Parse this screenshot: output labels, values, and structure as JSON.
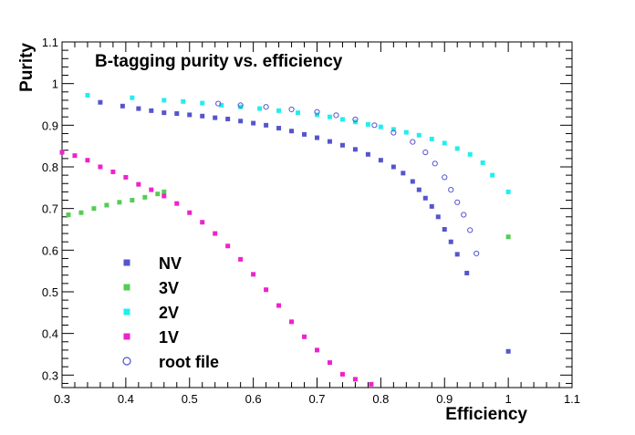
{
  "chart_data": {
    "type": "scatter",
    "title": "B-tagging purity vs. efficiency",
    "xlabel": "Efficiency",
    "ylabel": "Purity",
    "xlim": [
      0.3,
      1.1
    ],
    "ylim": [
      0.27,
      1.1
    ],
    "x_ticks": [
      "0.3",
      "0.4",
      "0.5",
      "0.6",
      "0.7",
      "0.8",
      "0.9",
      "1",
      "1.1"
    ],
    "y_ticks": [
      "0.3",
      "0.4",
      "0.5",
      "0.6",
      "0.7",
      "0.8",
      "0.9",
      "1",
      "1.1"
    ],
    "grid": false,
    "legend_placement": "bottom-left",
    "series": [
      {
        "name": "NV",
        "color": "#5555cc",
        "marker": "square-filled",
        "points": [
          [
            0.36,
            0.955
          ],
          [
            0.395,
            0.946
          ],
          [
            0.42,
            0.94
          ],
          [
            0.44,
            0.935
          ],
          [
            0.46,
            0.93
          ],
          [
            0.48,
            0.928
          ],
          [
            0.5,
            0.925
          ],
          [
            0.52,
            0.922
          ],
          [
            0.54,
            0.918
          ],
          [
            0.56,
            0.915
          ],
          [
            0.58,
            0.91
          ],
          [
            0.6,
            0.905
          ],
          [
            0.62,
            0.9
          ],
          [
            0.64,
            0.893
          ],
          [
            0.66,
            0.886
          ],
          [
            0.68,
            0.878
          ],
          [
            0.7,
            0.87
          ],
          [
            0.72,
            0.861
          ],
          [
            0.74,
            0.852
          ],
          [
            0.76,
            0.842
          ],
          [
            0.78,
            0.83
          ],
          [
            0.8,
            0.816
          ],
          [
            0.82,
            0.8
          ],
          [
            0.835,
            0.785
          ],
          [
            0.85,
            0.765
          ],
          [
            0.86,
            0.745
          ],
          [
            0.87,
            0.725
          ],
          [
            0.88,
            0.705
          ],
          [
            0.89,
            0.68
          ],
          [
            0.9,
            0.65
          ],
          [
            0.91,
            0.62
          ],
          [
            0.92,
            0.59
          ],
          [
            0.935,
            0.545
          ],
          [
            1.0,
            0.357
          ]
        ]
      },
      {
        "name": "3V",
        "color": "#55cc55",
        "marker": "square-filled",
        "points": [
          [
            0.31,
            0.685
          ],
          [
            0.33,
            0.69
          ],
          [
            0.35,
            0.7
          ],
          [
            0.37,
            0.708
          ],
          [
            0.39,
            0.715
          ],
          [
            0.41,
            0.72
          ],
          [
            0.43,
            0.727
          ],
          [
            0.45,
            0.735
          ],
          [
            0.46,
            0.74
          ],
          [
            1.0,
            0.632
          ]
        ]
      },
      {
        "name": "2V",
        "color": "#22eeee",
        "marker": "square-filled",
        "points": [
          [
            0.34,
            0.972
          ],
          [
            0.41,
            0.966
          ],
          [
            0.46,
            0.96
          ],
          [
            0.49,
            0.957
          ],
          [
            0.52,
            0.953
          ],
          [
            0.55,
            0.948
          ],
          [
            0.58,
            0.944
          ],
          [
            0.61,
            0.94
          ],
          [
            0.64,
            0.935
          ],
          [
            0.67,
            0.93
          ],
          [
            0.7,
            0.925
          ],
          [
            0.72,
            0.92
          ],
          [
            0.74,
            0.914
          ],
          [
            0.76,
            0.908
          ],
          [
            0.78,
            0.902
          ],
          [
            0.8,
            0.896
          ],
          [
            0.82,
            0.89
          ],
          [
            0.84,
            0.883
          ],
          [
            0.86,
            0.876
          ],
          [
            0.88,
            0.867
          ],
          [
            0.9,
            0.857
          ],
          [
            0.92,
            0.844
          ],
          [
            0.94,
            0.83
          ],
          [
            0.96,
            0.81
          ],
          [
            0.975,
            0.78
          ],
          [
            1.0,
            0.74
          ]
        ]
      },
      {
        "name": "1V",
        "color": "#ee22cc",
        "marker": "square-filled",
        "points": [
          [
            0.3,
            0.835
          ],
          [
            0.32,
            0.827
          ],
          [
            0.34,
            0.816
          ],
          [
            0.36,
            0.8
          ],
          [
            0.38,
            0.788
          ],
          [
            0.4,
            0.775
          ],
          [
            0.42,
            0.758
          ],
          [
            0.44,
            0.745
          ],
          [
            0.46,
            0.73
          ],
          [
            0.48,
            0.712
          ],
          [
            0.5,
            0.69
          ],
          [
            0.52,
            0.667
          ],
          [
            0.54,
            0.64
          ],
          [
            0.56,
            0.61
          ],
          [
            0.58,
            0.578
          ],
          [
            0.6,
            0.542
          ],
          [
            0.62,
            0.505
          ],
          [
            0.64,
            0.467
          ],
          [
            0.66,
            0.428
          ],
          [
            0.68,
            0.392
          ],
          [
            0.7,
            0.36
          ],
          [
            0.72,
            0.33
          ],
          [
            0.74,
            0.302
          ],
          [
            0.76,
            0.29
          ],
          [
            0.785,
            0.278
          ]
        ]
      },
      {
        "name": "root file",
        "color": "#5555cc",
        "marker": "circle-open",
        "points": [
          [
            0.545,
            0.952
          ],
          [
            0.58,
            0.948
          ],
          [
            0.62,
            0.944
          ],
          [
            0.66,
            0.938
          ],
          [
            0.7,
            0.932
          ],
          [
            0.73,
            0.924
          ],
          [
            0.76,
            0.914
          ],
          [
            0.79,
            0.9
          ],
          [
            0.82,
            0.882
          ],
          [
            0.85,
            0.86
          ],
          [
            0.87,
            0.835
          ],
          [
            0.885,
            0.808
          ],
          [
            0.9,
            0.775
          ],
          [
            0.91,
            0.745
          ],
          [
            0.92,
            0.715
          ],
          [
            0.93,
            0.685
          ],
          [
            0.94,
            0.648
          ],
          [
            0.95,
            0.592
          ]
        ]
      }
    ]
  }
}
